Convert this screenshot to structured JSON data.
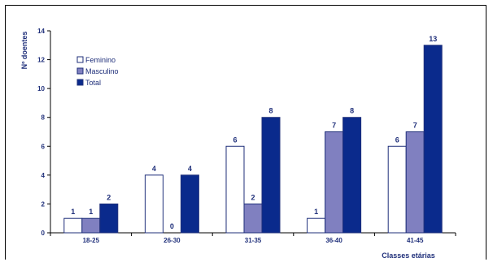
{
  "chart_data": {
    "type": "bar",
    "ylabel": "Nº doentes",
    "xlabel": "Classes etárias",
    "ylim": [
      0,
      14
    ],
    "yticks": [
      0,
      2,
      4,
      6,
      8,
      10,
      12,
      14
    ],
    "categories": [
      "18-25",
      "26-30",
      "31-35",
      "36-40",
      "41-45"
    ],
    "series": [
      {
        "name": "Feminino",
        "values": [
          1,
          4,
          6,
          1,
          6
        ],
        "color": "#ffffff"
      },
      {
        "name": "Masculino",
        "values": [
          1,
          0,
          2,
          7,
          7
        ],
        "color": "#8080c0"
      },
      {
        "name": "Total",
        "values": [
          2,
          4,
          8,
          8,
          13
        ],
        "color": "#0a2a8c"
      }
    ],
    "legend_position": "top-left",
    "grid": false
  },
  "colors": {
    "text": "#1f2f7a",
    "axis": "#000000",
    "bar_stroke": "#1f2f7a"
  }
}
